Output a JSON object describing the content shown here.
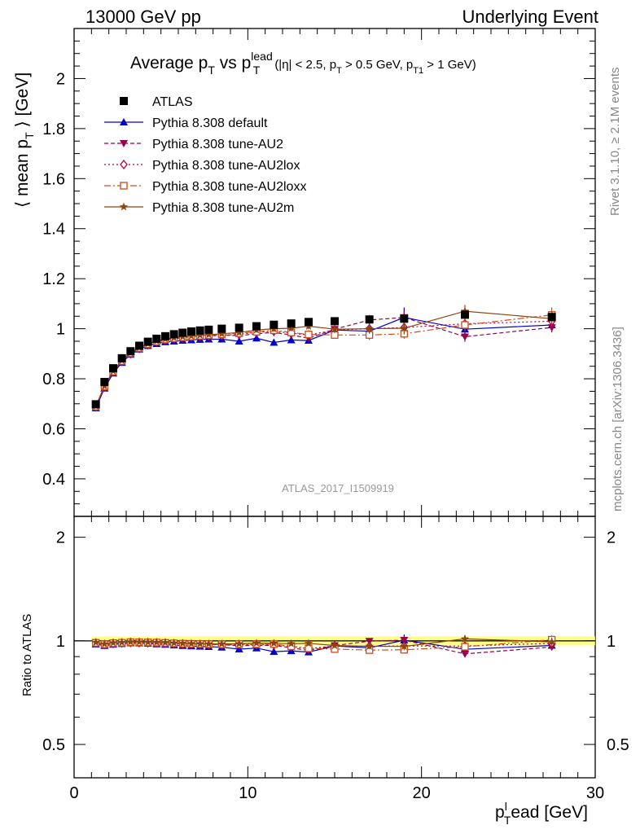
{
  "header": {
    "left": "13000 GeV pp",
    "right": "Underlying Event"
  },
  "side_labels": {
    "rivet": "Rivet 3.1.10, ≥ 2.1M events",
    "mcplots": "mcplots.cern.ch [arXiv:1306.3436]"
  },
  "watermark": "ATLAS_2017_I1509919",
  "title": {
    "text": "Average p",
    "sub_t": "T",
    "vs": " vs p",
    "sup_lead": "lead",
    "sub_t2": "T",
    "cuts_a": "(|η| < 2.5, p",
    "cuts_sub1": "T",
    "cuts_b": " > 0.5 GeV, p",
    "cuts_sub2": "T1",
    "cuts_c": " > 1 GeV)"
  },
  "axes": {
    "ylabel_main": "⟨ mean p",
    "ylabel_main_sub": "T",
    "ylabel_main_end": " ⟩ [GeV]",
    "ylabel_ratio": "Ratio to ATLAS",
    "xlabel_a": "p",
    "xlabel_sub": "T",
    "xlabel_sup": "l",
    "xlabel_b": "ead [GeV]"
  },
  "colors": {
    "atlas": "#000000",
    "default": "#0000cc",
    "au2": "#99004c",
    "au2lox": "#b3003b",
    "au2loxx": "#cc4c1a",
    "au2m": "#8b4513",
    "band": "#ffff66"
  },
  "chart_data": {
    "type": "scatter",
    "xlim": [
      0,
      30
    ],
    "ylim_main": [
      0.25,
      2.2
    ],
    "ylim_ratio": [
      0.4,
      2.3
    ],
    "xticks": [
      0,
      10,
      20,
      30
    ],
    "yticks_main": [
      0.4,
      0.6,
      0.8,
      1,
      1.2,
      1.4,
      1.6,
      1.8,
      2
    ],
    "yticks_ratio": [
      0.5,
      1,
      2
    ],
    "x": [
      1.25,
      1.75,
      2.25,
      2.75,
      3.25,
      3.75,
      4.25,
      4.75,
      5.25,
      5.75,
      6.25,
      6.75,
      7.25,
      7.75,
      8.5,
      9.5,
      10.5,
      11.5,
      12.5,
      13.5,
      15,
      17,
      19,
      22.5,
      27.5
    ],
    "series": [
      {
        "name": "ATLAS",
        "key": "atlas",
        "marker": "square",
        "values": [
          0.698,
          0.787,
          0.842,
          0.882,
          0.91,
          0.932,
          0.948,
          0.96,
          0.97,
          0.978,
          0.984,
          0.989,
          0.993,
          0.996,
          1.0,
          1.004,
          1.01,
          1.016,
          1.021,
          1.027,
          1.03,
          1.037,
          1.04,
          1.056,
          1.047
        ]
      },
      {
        "name": "Pythia 8.308 default",
        "key": "default",
        "marker": "triangle-up",
        "dash": "",
        "values": [
          0.683,
          0.762,
          0.822,
          0.865,
          0.897,
          0.918,
          0.932,
          0.94,
          0.947,
          0.95,
          0.953,
          0.955,
          0.957,
          0.958,
          0.958,
          0.95,
          0.962,
          0.945,
          0.955,
          0.953,
          0.995,
          0.99,
          1.045,
          0.998,
          1.015
        ],
        "err": [
          0,
          0,
          0,
          0,
          0,
          0,
          0,
          0,
          0,
          0,
          0,
          0,
          0,
          0,
          0,
          0.01,
          0.01,
          0.01,
          0.012,
          0.012,
          0.015,
          0.02,
          0.04,
          0.03,
          0.025
        ]
      },
      {
        "name": "Pythia 8.308 tune-AU2",
        "key": "au2",
        "marker": "triangle-down",
        "dash": "5,3",
        "values": [
          0.69,
          0.77,
          0.83,
          0.872,
          0.903,
          0.925,
          0.94,
          0.95,
          0.957,
          0.962,
          0.966,
          0.969,
          0.971,
          0.972,
          0.975,
          0.972,
          0.98,
          0.985,
          0.975,
          0.962,
          0.998,
          1.035,
          1.045,
          0.968,
          1.005
        ],
        "err": [
          0,
          0,
          0,
          0,
          0,
          0,
          0,
          0,
          0,
          0,
          0,
          0,
          0,
          0,
          0,
          0.01,
          0.01,
          0.012,
          0.012,
          0.012,
          0.015,
          0.02,
          0.025,
          0.02,
          0.02
        ]
      },
      {
        "name": "Pythia 8.308 tune-AU2lox",
        "key": "au2lox",
        "marker": "diamond-open",
        "dash": "2,3",
        "values": [
          0.688,
          0.768,
          0.828,
          0.87,
          0.9,
          0.921,
          0.936,
          0.947,
          0.955,
          0.96,
          0.964,
          0.967,
          0.969,
          0.971,
          0.973,
          0.978,
          0.985,
          0.99,
          0.982,
          0.975,
          0.995,
          1.0,
          1.005,
          1.02,
          1.03
        ],
        "err": [
          0,
          0,
          0,
          0,
          0,
          0,
          0,
          0,
          0,
          0,
          0,
          0,
          0,
          0,
          0,
          0.01,
          0.01,
          0.012,
          0.012,
          0.012,
          0.015,
          0.02,
          0.025,
          0.025,
          0.025
        ]
      },
      {
        "name": "Pythia 8.308 tune-AU2loxx",
        "key": "au2loxx",
        "marker": "square-open",
        "dash": "8,3,2,3",
        "values": [
          0.689,
          0.769,
          0.829,
          0.871,
          0.902,
          0.923,
          0.938,
          0.949,
          0.957,
          0.962,
          0.966,
          0.969,
          0.972,
          0.974,
          0.977,
          0.982,
          0.988,
          0.994,
          0.985,
          0.977,
          0.975,
          0.975,
          0.98,
          1.015,
          1.055
        ],
        "err": [
          0,
          0,
          0,
          0,
          0,
          0,
          0,
          0,
          0,
          0,
          0,
          0,
          0,
          0,
          0,
          0.01,
          0.01,
          0.012,
          0.012,
          0.012,
          0.015,
          0.02,
          0.02,
          0.025,
          0.03
        ]
      },
      {
        "name": "Pythia 8.308 tune-AU2m",
        "key": "au2m",
        "marker": "star",
        "dash": "",
        "values": [
          0.691,
          0.771,
          0.831,
          0.873,
          0.904,
          0.925,
          0.94,
          0.951,
          0.959,
          0.964,
          0.968,
          0.971,
          0.974,
          0.976,
          0.98,
          0.985,
          0.995,
          1.0,
          1.002,
          1.01,
          0.998,
          1.0,
          1.002,
          1.07,
          1.04
        ],
        "err": [
          0,
          0,
          0,
          0,
          0,
          0,
          0,
          0,
          0,
          0,
          0,
          0,
          0,
          0,
          0,
          0.01,
          0.01,
          0.012,
          0.012,
          0.012,
          0.015,
          0.02,
          0.025,
          0.025,
          0.03
        ]
      }
    ]
  }
}
